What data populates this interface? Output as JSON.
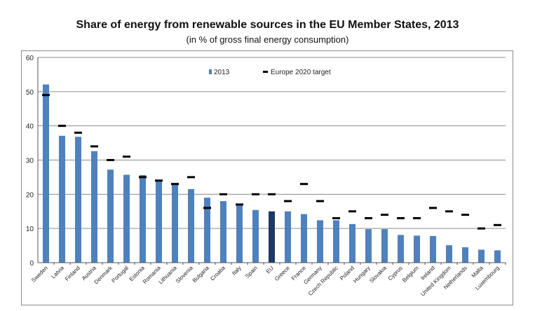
{
  "header": {
    "title": "Share of energy from renewable sources in the EU Member States, 2013",
    "subtitle": "(in % of gross final energy consumption)"
  },
  "chart_data": {
    "type": "bar",
    "title": "Share of energy from renewable sources in the EU Member States, 2013",
    "subtitle": "(in % of gross final energy consumption)",
    "xlabel": "",
    "ylabel": "",
    "ylim": [
      0,
      60
    ],
    "yticks": [
      0,
      10,
      20,
      30,
      40,
      50,
      60
    ],
    "grid": true,
    "legend_position": "top-center",
    "categories": [
      "Sweden",
      "Latvia",
      "Finland",
      "Austria",
      "Denmark",
      "Portugal",
      "Estonia",
      "Romania",
      "Lithuania",
      "Slovenia",
      "Bulgaria",
      "Croatia",
      "Italy",
      "Spain",
      "EU",
      "Greece",
      "France",
      "Germany",
      "Czech Republic",
      "Poland",
      "Hungary",
      "Slovakia",
      "Cyprus",
      "Belgium",
      "Ireland",
      "United Kingdom",
      "Netherlands",
      "Malta",
      "Luxembourg"
    ],
    "series": [
      {
        "name": "2013",
        "kind": "bar",
        "color": "#4f81bd",
        "highlight": {
          "category": "EU",
          "color": "#1f3864"
        },
        "values": [
          52.1,
          37.1,
          36.8,
          32.6,
          27.2,
          25.7,
          25.6,
          23.9,
          23.0,
          21.5,
          19.0,
          18.0,
          16.7,
          15.4,
          15.0,
          15.0,
          14.2,
          12.4,
          12.4,
          11.3,
          9.8,
          9.8,
          8.1,
          7.9,
          7.8,
          5.1,
          4.5,
          3.8,
          3.6
        ]
      },
      {
        "name": "Europe 2020 target",
        "kind": "marker",
        "color": "#000000",
        "values": [
          49,
          40,
          38,
          34,
          30,
          31,
          25,
          24,
          23,
          25,
          16,
          20,
          17,
          20,
          20,
          18,
          23,
          18,
          13,
          15,
          13,
          14,
          13,
          13,
          16,
          15,
          14,
          10,
          11
        ]
      }
    ]
  }
}
